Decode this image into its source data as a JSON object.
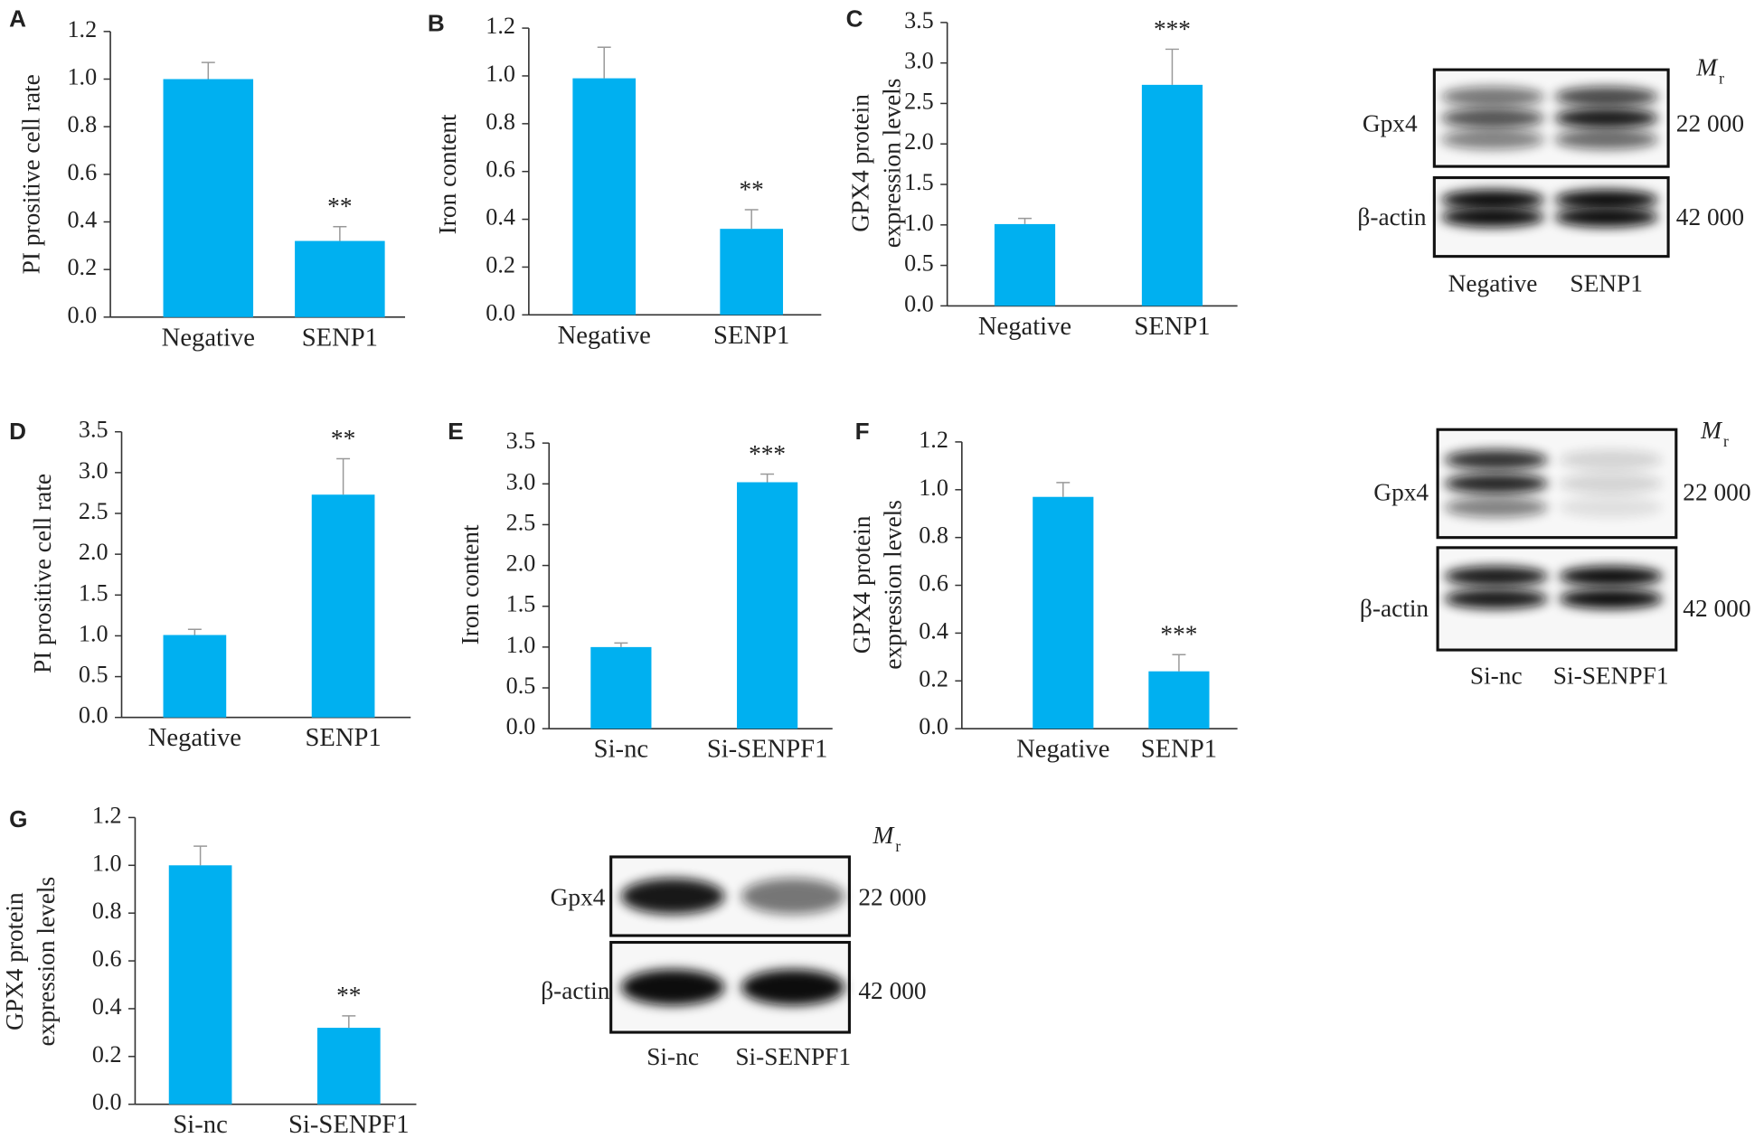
{
  "chart_data": [
    {
      "type": "bar",
      "panel": "A",
      "ylabel": [
        "PI prositive cell rate"
      ],
      "categories": [
        "Negative",
        "SENP1"
      ],
      "values": [
        1.0,
        0.32
      ],
      "errors": [
        0.07,
        0.06
      ],
      "annotations": [
        {
          "category": "SENP1",
          "text": "**"
        }
      ],
      "color": "#00b0f0",
      "ylim": [
        0,
        1.2
      ],
      "yticks": [
        {
          "value": 0,
          "label": "0.0"
        },
        0.2,
        0.4,
        0.6,
        0.8,
        {
          "value": 1,
          "label": "1.0"
        },
        1.2
      ]
    },
    {
      "type": "bar",
      "panel": "B",
      "ylabel": [
        "Iron content"
      ],
      "categories": [
        "Negative",
        "SENP1"
      ],
      "values": [
        0.99,
        0.36
      ],
      "errors": [
        0.13,
        0.08
      ],
      "annotations": [
        {
          "category": "SENP1",
          "text": "**"
        }
      ],
      "color": "#00b0f0",
      "ylim": [
        0,
        1.2
      ],
      "yticks": [
        {
          "value": 0,
          "label": "0.0"
        },
        0.2,
        0.4,
        0.6,
        0.8,
        {
          "value": 1,
          "label": "1.0"
        },
        1.2
      ]
    },
    {
      "type": "bar",
      "panel": "C",
      "ylabel": [
        "GPX4 protein",
        "expression levels"
      ],
      "categories": [
        "Negative",
        "SENP1"
      ],
      "values": [
        1.01,
        2.73
      ],
      "errors": [
        0.07,
        0.44
      ],
      "annotations": [
        {
          "category": "SENP1",
          "text": "***"
        }
      ],
      "color": "#00b0f0",
      "ylim": [
        0,
        3.5
      ],
      "yticks": [
        {
          "value": 0,
          "label": "0.0"
        },
        0.5,
        {
          "value": 1,
          "label": "1.0"
        },
        1.5,
        {
          "value": 2,
          "label": "2.0"
        },
        2.5,
        {
          "value": 3,
          "label": "3.0"
        },
        3.5
      ]
    },
    {
      "type": "bar",
      "panel": "D",
      "ylabel": [
        "PI prositive cell rate"
      ],
      "categories": [
        "Negative",
        "SENP1"
      ],
      "values": [
        1.01,
        2.73
      ],
      "errors": [
        0.07,
        0.44
      ],
      "annotations": [
        {
          "category": "SENP1",
          "text": "**"
        }
      ],
      "color": "#00b0f0",
      "ylim": [
        0,
        3.5
      ],
      "yticks": [
        {
          "value": 0,
          "label": "0.0"
        },
        0.5,
        {
          "value": 1,
          "label": "1.0"
        },
        1.5,
        {
          "value": 2,
          "label": "2.0"
        },
        2.5,
        {
          "value": 3,
          "label": "3.0"
        },
        3.5
      ]
    },
    {
      "type": "bar",
      "panel": "E",
      "ylabel": [
        "Iron content"
      ],
      "categories": [
        "Si-nc",
        "Si-SENPF1"
      ],
      "values": [
        1.0,
        3.02
      ],
      "errors": [
        0.05,
        0.1
      ],
      "annotations": [
        {
          "category": "Si-SENPF1",
          "text": "***"
        }
      ],
      "color": "#00b0f0",
      "ylim": [
        0,
        3.5
      ],
      "yticks": [
        {
          "value": 0,
          "label": "0.0"
        },
        0.5,
        {
          "value": 1,
          "label": "1.0"
        },
        1.5,
        {
          "value": 2,
          "label": "2.0"
        },
        2.5,
        {
          "value": 3,
          "label": "3.0"
        },
        3.5
      ]
    },
    {
      "type": "bar",
      "panel": "F",
      "ylabel": [
        "GPX4 protein",
        "expression levels"
      ],
      "categories": [
        "Negative",
        "SENP1"
      ],
      "values": [
        0.97,
        0.24
      ],
      "errors": [
        0.06,
        0.07
      ],
      "annotations": [
        {
          "category": "SENP1",
          "text": "***"
        }
      ],
      "color": "#00b0f0",
      "ylim": [
        0,
        1.2
      ],
      "yticks": [
        {
          "value": 0,
          "label": "0.0"
        },
        0.2,
        0.4,
        0.6,
        0.8,
        {
          "value": 1,
          "label": "1.0"
        },
        1.2
      ]
    },
    {
      "type": "bar",
      "panel": "G",
      "ylabel": [
        "GPX4 protein",
        "expression levels"
      ],
      "categories": [
        "Si-nc",
        "Si-SENPF1"
      ],
      "values": [
        1.0,
        0.32
      ],
      "errors": [
        0.08,
        0.05
      ],
      "annotations": [
        {
          "category": "Si-SENPF1",
          "text": "**"
        }
      ],
      "color": "#00b0f0",
      "ylim": [
        0,
        1.2
      ],
      "yticks": [
        {
          "value": 0,
          "label": "0.0"
        },
        0.2,
        0.4,
        0.6,
        0.8,
        {
          "value": 1,
          "label": "1.0"
        },
        1.2
      ]
    }
  ],
  "blots": [
    {
      "mr_symbol": "M",
      "mr_subscript": "r",
      "rows": [
        {
          "label": "Gpx4",
          "mass": "22 000"
        },
        {
          "label": "β-actin",
          "mass": "42 000"
        }
      ],
      "lanes": [
        "Negative",
        "SENP1"
      ]
    },
    {
      "mr_symbol": "M",
      "mr_subscript": "r",
      "rows": [
        {
          "label": "Gpx4",
          "mass": "22 000"
        },
        {
          "label": "β-actin",
          "mass": "42 000"
        }
      ],
      "lanes": [
        "Si-nc",
        "Si-SENPF1"
      ]
    },
    {
      "mr_symbol": "M",
      "mr_subscript": "r",
      "rows": [
        {
          "label": "Gpx4",
          "mass": "22 000"
        },
        {
          "label": "β-actin",
          "mass": "42 000"
        }
      ],
      "lanes": [
        "Si-nc",
        "Si-SENPF1"
      ]
    }
  ]
}
